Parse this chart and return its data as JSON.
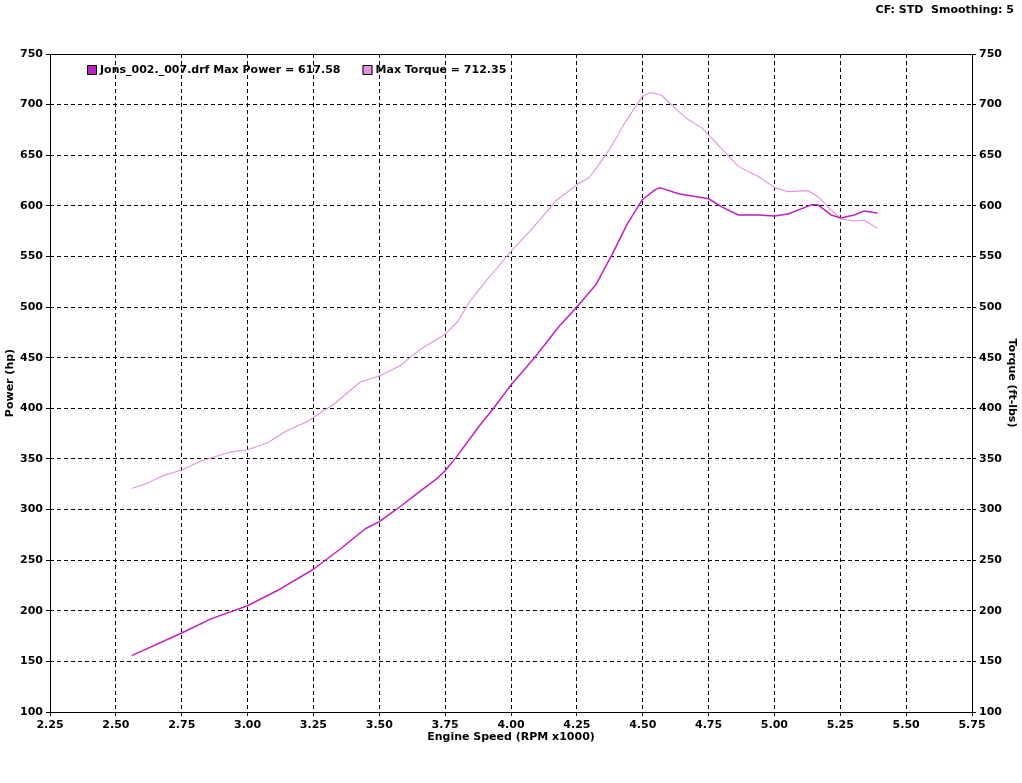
{
  "chart_data": {
    "type": "line",
    "xlabel": "Engine Speed (RPM x1000)",
    "ylabel": "Power (hp)",
    "y2label": "Torque (ft-lbs)",
    "annotations": [
      "CF: STD  Smoothing: 5"
    ],
    "xlim": [
      2.25,
      5.75
    ],
    "xticks": [
      2.25,
      {
        "value": 2.5,
        "label": "2.50"
      },
      2.75,
      {
        "value": 3,
        "label": "3.00"
      },
      3.25,
      {
        "value": 3.5,
        "label": "3.50"
      },
      3.75,
      {
        "value": 4,
        "label": "4.00"
      },
      4.25,
      {
        "value": 4.5,
        "label": "4.50"
      },
      4.75,
      {
        "value": 5,
        "label": "5.00"
      },
      5.25,
      {
        "value": 5.5,
        "label": "5.50"
      },
      5.75
    ],
    "ylim": [
      100,
      750
    ],
    "yticks": [
      100,
      150,
      200,
      250,
      300,
      350,
      400,
      450,
      500,
      550,
      600,
      650,
      700,
      750
    ],
    "y2lim": [
      100,
      750
    ],
    "y2ticks": [
      100,
      150,
      200,
      250,
      300,
      350,
      400,
      450,
      500,
      550,
      600,
      650,
      700,
      750
    ],
    "grid": true,
    "legend": "top left",
    "series": [
      {
        "name": "Jons_002._007.drf Max Power = 617.58",
        "color": "#c020c0",
        "x": [
          2.562,
          2.75,
          2.861,
          3.0,
          3.113,
          3.25,
          3.352,
          3.447,
          3.5,
          3.585,
          3.654,
          3.711,
          3.749,
          3.793,
          3.881,
          3.931,
          4.0,
          4.089,
          4.183,
          4.25,
          4.322,
          4.384,
          4.441,
          4.498,
          4.548,
          4.565,
          4.636,
          4.75,
          4.8,
          4.863,
          4.939,
          5.001,
          5.052,
          5.14,
          5.165,
          5.215,
          5.253,
          5.303,
          5.341,
          5.389
        ],
        "values": [
          156,
          178,
          192,
          205,
          220,
          241,
          261,
          281,
          288,
          304,
          318,
          329,
          338,
          352,
          383,
          399,
          423,
          450,
          481,
          500,
          522,
          552,
          582,
          606,
          616,
          618,
          612,
          607,
          599,
          591,
          591,
          590,
          592,
          601,
          601,
          591,
          588,
          591,
          595,
          593
        ]
      },
      {
        "name": "Max Torque = 712.35",
        "color": "#e092e0",
        "x": [
          2.562,
          2.609,
          2.685,
          2.75,
          2.824,
          2.937,
          3.0,
          3.076,
          3.151,
          3.227,
          3.25,
          3.327,
          3.428,
          3.5,
          3.579,
          3.654,
          3.749,
          3.799,
          3.84,
          3.881,
          3.906,
          4.0,
          4.082,
          4.171,
          4.25,
          4.297,
          4.334,
          4.372,
          4.435,
          4.498,
          4.53,
          4.573,
          4.624,
          4.674,
          4.724,
          4.787,
          4.863,
          4.939,
          5.001,
          5.052,
          5.128,
          5.165,
          5.215,
          5.253,
          5.303,
          5.341,
          5.389
        ],
        "values": [
          321,
          325,
          334,
          339,
          348,
          357,
          359,
          366,
          378,
          387,
          391,
          404,
          426,
          432,
          442,
          458,
          473,
          486,
          504,
          518,
          526,
          555,
          578,
          605,
          621,
          628,
          641,
          655,
          683,
          708,
          712,
          709,
          696,
          685,
          677,
          660,
          639,
          629,
          618,
          614,
          615,
          609,
          596,
          587,
          585,
          586,
          578
        ]
      }
    ]
  }
}
